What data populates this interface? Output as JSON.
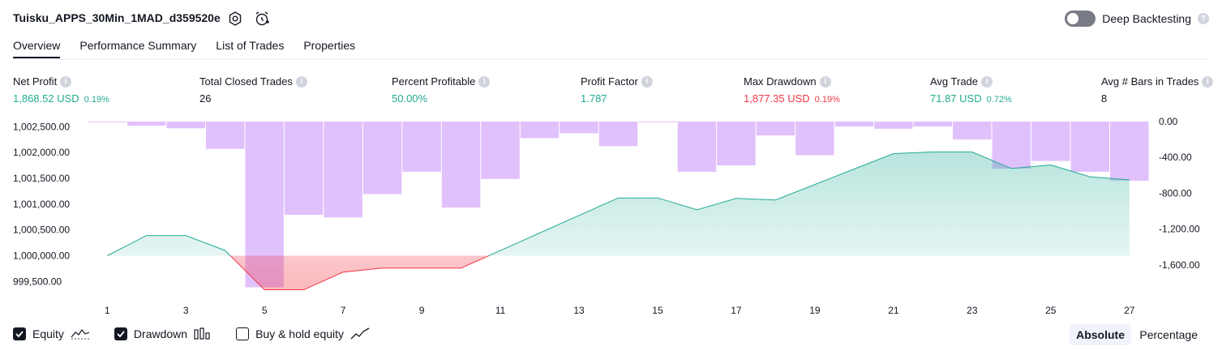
{
  "header": {
    "title": "Tuisku_APPS_30Min_1MAD_d359520e",
    "settings_icon": "gear-icon",
    "alert_icon": "alarm-clock-plus-icon",
    "deep_backtesting_label": "Deep Backtesting",
    "deep_backtesting_on": false,
    "help_glyph": "?"
  },
  "tabs": [
    {
      "label": "Overview",
      "active": true
    },
    {
      "label": "Performance Summary",
      "active": false
    },
    {
      "label": "List of Trades",
      "active": false
    },
    {
      "label": "Properties",
      "active": false
    }
  ],
  "metrics": {
    "net_profit": {
      "label": "Net Profit",
      "value": "1,868.52 USD",
      "pct": "0.19%"
    },
    "total_closed_trades": {
      "label": "Total Closed Trades",
      "value": "26"
    },
    "percent_profitable": {
      "label": "Percent Profitable",
      "value": "50.00%"
    },
    "profit_factor": {
      "label": "Profit Factor",
      "value": "1.787"
    },
    "max_drawdown": {
      "label": "Max Drawdown",
      "value": "1,877.35 USD",
      "pct": "0.19%"
    },
    "avg_trade": {
      "label": "Avg Trade",
      "value": "71.87 USD",
      "pct": "0.72%"
    },
    "avg_bars": {
      "label": "Avg # Bars in Trades",
      "value": "8"
    },
    "info_glyph": "i"
  },
  "colors": {
    "green": "#22ab94",
    "red": "#f23645",
    "drawdown_bar": "#e1c1fc",
    "text": "#131722"
  },
  "chart_data": {
    "type": "line",
    "x_ticks": [
      "1",
      "3",
      "5",
      "7",
      "9",
      "11",
      "13",
      "15",
      "17",
      "19",
      "21",
      "23",
      "25",
      "27"
    ],
    "y_left_ticks": [
      "1,002,500.00",
      "1,002,000.00",
      "1,001,500.00",
      "1,001,000.00",
      "1,000,500.00",
      "1,000,000.00",
      "999,500.00"
    ],
    "y_right_ticks": [
      "0.00",
      "-400.00",
      "-800.00",
      "-1,200.00",
      "-1,600.00"
    ],
    "ylim_left": [
      999300,
      1002600
    ],
    "ylim_right": [
      -1900,
      0
    ],
    "xlim": [
      0.5,
      27.5
    ],
    "baseline": 1000000,
    "series": [
      {
        "type": "line",
        "x": [
          1,
          2,
          3,
          4,
          5,
          6,
          7,
          8,
          9,
          10,
          11,
          12,
          13,
          14,
          15,
          16,
          17,
          18,
          19,
          20,
          21,
          22,
          23,
          24,
          25,
          26,
          27
        ],
        "values": [
          1000000,
          1000390,
          1000390,
          1000100,
          999340,
          999340,
          999680,
          999760,
          999760,
          999760,
          1000100,
          1000440,
          1000780,
          1001120,
          1001120,
          1000890,
          1001110,
          1001080,
          1001380,
          1001680,
          1001980,
          1002010,
          1002010,
          1001690,
          1001760,
          1001530,
          1001470
        ]
      },
      {
        "type": "bar",
        "x": [
          1,
          2,
          3,
          4,
          5,
          6,
          7,
          8,
          9,
          10,
          11,
          12,
          13,
          14,
          15,
          16,
          17,
          18,
          19,
          20,
          21,
          22,
          23,
          24,
          25,
          26,
          27
        ],
        "values": [
          -5,
          -45,
          -75,
          -305,
          -1850,
          -1040,
          -1070,
          -810,
          -560,
          -960,
          -640,
          -185,
          -130,
          -275,
          0,
          -560,
          -490,
          -155,
          -375,
          -55,
          -80,
          -55,
          -200,
          -525,
          -440,
          -560,
          -660
        ]
      }
    ]
  },
  "legend": {
    "equity": {
      "label": "Equity",
      "checked": true,
      "icon": "equity-line-icon"
    },
    "drawdown": {
      "label": "Drawdown",
      "checked": true,
      "icon": "drawdown-bars-icon"
    },
    "buy_hold": {
      "label": "Buy & hold equity",
      "checked": false,
      "icon": "buy-hold-line-icon"
    }
  },
  "view_toggle": {
    "absolute": "Absolute",
    "percentage": "Percentage",
    "selected": "Absolute"
  }
}
